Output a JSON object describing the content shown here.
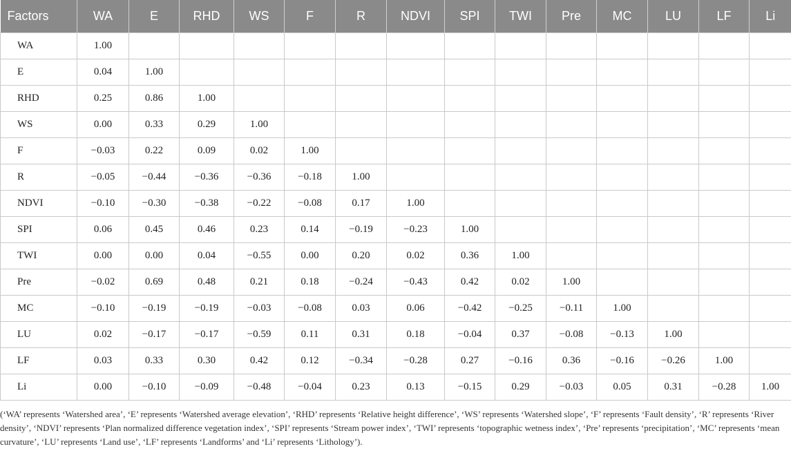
{
  "table": {
    "headers": [
      "Factors",
      "WA",
      "E",
      "RHD",
      "WS",
      "F",
      "R",
      "NDVI",
      "SPI",
      "TWI",
      "Pre",
      "MC",
      "LU",
      "LF",
      "Li"
    ],
    "rows": [
      [
        "WA",
        "1.00",
        "",
        "",
        "",
        "",
        "",
        "",
        "",
        "",
        "",
        "",
        "",
        "",
        ""
      ],
      [
        "E",
        "0.04",
        "1.00",
        "",
        "",
        "",
        "",
        "",
        "",
        "",
        "",
        "",
        "",
        "",
        ""
      ],
      [
        "RHD",
        "0.25",
        "0.86",
        "1.00",
        "",
        "",
        "",
        "",
        "",
        "",
        "",
        "",
        "",
        "",
        ""
      ],
      [
        "WS",
        "0.00",
        "0.33",
        "0.29",
        "1.00",
        "",
        "",
        "",
        "",
        "",
        "",
        "",
        "",
        "",
        ""
      ],
      [
        "F",
        "−0.03",
        "0.22",
        "0.09",
        "0.02",
        "1.00",
        "",
        "",
        "",
        "",
        "",
        "",
        "",
        "",
        ""
      ],
      [
        "R",
        "−0.05",
        "−0.44",
        "−0.36",
        "−0.36",
        "−0.18",
        "1.00",
        "",
        "",
        "",
        "",
        "",
        "",
        "",
        ""
      ],
      [
        "NDVI",
        "−0.10",
        "−0.30",
        "−0.38",
        "−0.22",
        "−0.08",
        "0.17",
        "1.00",
        "",
        "",
        "",
        "",
        "",
        "",
        ""
      ],
      [
        "SPI",
        "0.06",
        "0.45",
        "0.46",
        "0.23",
        "0.14",
        "−0.19",
        "−0.23",
        "1.00",
        "",
        "",
        "",
        "",
        "",
        ""
      ],
      [
        "TWI",
        "0.00",
        "0.00",
        "0.04",
        "−0.55",
        "0.00",
        "0.20",
        "0.02",
        "0.36",
        "1.00",
        "",
        "",
        "",
        "",
        ""
      ],
      [
        "Pre",
        "−0.02",
        "0.69",
        "0.48",
        "0.21",
        "0.18",
        "−0.24",
        "−0.43",
        "0.42",
        "0.02",
        "1.00",
        "",
        "",
        "",
        ""
      ],
      [
        "MC",
        "−0.10",
        "−0.19",
        "−0.19",
        "−0.03",
        "−0.08",
        "0.03",
        "0.06",
        "−0.42",
        "−0.25",
        "−0.11",
        "1.00",
        "",
        "",
        ""
      ],
      [
        "LU",
        "0.02",
        "−0.17",
        "−0.17",
        "−0.59",
        "0.11",
        "0.31",
        "0.18",
        "−0.04",
        "0.37",
        "−0.08",
        "−0.13",
        "1.00",
        "",
        ""
      ],
      [
        "LF",
        "0.03",
        "0.33",
        "0.30",
        "0.42",
        "0.12",
        "−0.34",
        "−0.28",
        "0.27",
        "−0.16",
        "0.36",
        "−0.16",
        "−0.26",
        "1.00",
        ""
      ],
      [
        "Li",
        "0.00",
        "−0.10",
        "−0.09",
        "−0.48",
        "−0.04",
        "0.23",
        "0.13",
        "−0.15",
        "0.29",
        "−0.03",
        "0.05",
        "0.31",
        "−0.28",
        "1.00"
      ]
    ]
  },
  "footnote": "(‘WA’ represents ‘Watershed area’, ‘E’ represents ‘Watershed average elevation’, ‘RHD’ represents ‘Relative height difference’, ‘WS’ represents ‘Watershed slope’, ‘F’ represents ‘Fault density’, ‘R’ represents ‘River density’, ‘NDVI’ represents ‘Plan normalized difference vegetation index’, ‘SPI’ represents ‘Stream power index’, ‘TWI’ represents ‘topographic wetness index’, ‘Pre’ represents ‘precipitation’, ‘MC’ represents ‘mean curvature’, ‘LU’ represents ‘Land use’, ‘LF’ represents ‘Landforms’ and ‘Li’ represents ‘Lithology’)."
}
